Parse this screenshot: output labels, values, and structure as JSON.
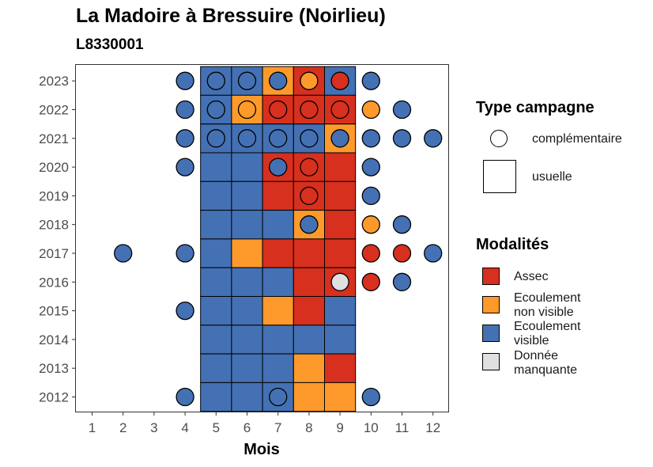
{
  "title": "La Madoire à Bressuire (Noirlieu)",
  "subtitle": "L8330001",
  "legend": {
    "type_title": "Type campagne",
    "type_items": [
      {
        "label": "complémentaire",
        "shape": "circle"
      },
      {
        "label": "usuelle",
        "shape": "square"
      }
    ],
    "mod_title": "Modalités",
    "mod_items": [
      {
        "key": "A",
        "label": [
          "Assec"
        ],
        "color": "#d7301f"
      },
      {
        "key": "N",
        "label": [
          "Ecoulement",
          "non visible"
        ],
        "color": "#fd9a2b"
      },
      {
        "key": "V",
        "label": [
          "Ecoulement",
          "visible"
        ],
        "color": "#4471b4"
      },
      {
        "key": "M",
        "label": [
          "Donnée",
          "manquante"
        ],
        "color": "#e0e0e0"
      }
    ]
  },
  "chart_data": {
    "type": "heatmap",
    "title": "La Madoire à Bressuire (Noirlieu)",
    "subtitle": "L8330001",
    "xlabel": "Mois",
    "ylabel": "",
    "x_ticks": [
      1,
      2,
      3,
      4,
      5,
      6,
      7,
      8,
      9,
      10,
      11,
      12
    ],
    "y_ticks": [
      2012,
      2013,
      2014,
      2015,
      2016,
      2017,
      2018,
      2019,
      2020,
      2021,
      2022,
      2023
    ],
    "colors": {
      "A": "#d7301f",
      "N": "#fd9a2b",
      "V": "#4471b4",
      "M": "#e0e0e0"
    },
    "usuelle": [
      {
        "year": 2023,
        "values": {
          "5": "V",
          "6": "V",
          "7": "N",
          "8": "A",
          "9": "V"
        }
      },
      {
        "year": 2022,
        "values": {
          "5": "V",
          "6": "N",
          "7": "A",
          "8": "A",
          "9": "A"
        }
      },
      {
        "year": 2021,
        "values": {
          "5": "V",
          "6": "V",
          "7": "V",
          "8": "V",
          "9": "N"
        }
      },
      {
        "year": 2020,
        "values": {
          "5": "V",
          "6": "V",
          "7": "A",
          "8": "A",
          "9": "A"
        }
      },
      {
        "year": 2019,
        "values": {
          "5": "V",
          "6": "V",
          "7": "A",
          "8": "A",
          "9": "A"
        }
      },
      {
        "year": 2018,
        "values": {
          "5": "V",
          "6": "V",
          "7": "V",
          "8": "N",
          "9": "A"
        }
      },
      {
        "year": 2017,
        "values": {
          "5": "V",
          "6": "N",
          "7": "A",
          "8": "A",
          "9": "A"
        }
      },
      {
        "year": 2016,
        "values": {
          "5": "V",
          "6": "V",
          "7": "V",
          "8": "A",
          "9": "A"
        }
      },
      {
        "year": 2015,
        "values": {
          "5": "V",
          "6": "V",
          "7": "N",
          "8": "A",
          "9": "V"
        }
      },
      {
        "year": 2014,
        "values": {
          "5": "V",
          "6": "V",
          "7": "V",
          "8": "V",
          "9": "V"
        }
      },
      {
        "year": 2013,
        "values": {
          "5": "V",
          "6": "V",
          "7": "V",
          "8": "N",
          "9": "A"
        }
      },
      {
        "year": 2012,
        "values": {
          "5": "V",
          "6": "V",
          "7": "V",
          "8": "N",
          "9": "N"
        }
      }
    ],
    "complementaire": [
      {
        "year": 2023,
        "values": {
          "4": "V",
          "5": "V",
          "6": "V",
          "7": "V",
          "8": "N",
          "9": "A",
          "10": "V"
        }
      },
      {
        "year": 2022,
        "values": {
          "4": "V",
          "5": "V",
          "6": "N",
          "7": "A",
          "8": "A",
          "9": "A",
          "10": "N",
          "11": "V"
        }
      },
      {
        "year": 2021,
        "values": {
          "4": "V",
          "5": "V",
          "6": "V",
          "7": "V",
          "8": "V",
          "9": "V",
          "10": "V",
          "11": "V",
          "12": "V"
        }
      },
      {
        "year": 2020,
        "values": {
          "4": "V",
          "7": "V",
          "8": "A",
          "10": "V"
        }
      },
      {
        "year": 2019,
        "values": {
          "8": "A",
          "10": "V"
        }
      },
      {
        "year": 2018,
        "values": {
          "8": "V",
          "10": "N",
          "11": "V"
        }
      },
      {
        "year": 2017,
        "values": {
          "2": "V",
          "4": "V",
          "10": "A",
          "11": "A",
          "12": "V"
        }
      },
      {
        "year": 2016,
        "values": {
          "9": "M",
          "10": "A",
          "11": "V"
        }
      },
      {
        "year": 2015,
        "values": {
          "4": "V"
        }
      },
      {
        "year": 2012,
        "values": {
          "4": "V",
          "7": "V",
          "10": "V"
        }
      }
    ]
  }
}
